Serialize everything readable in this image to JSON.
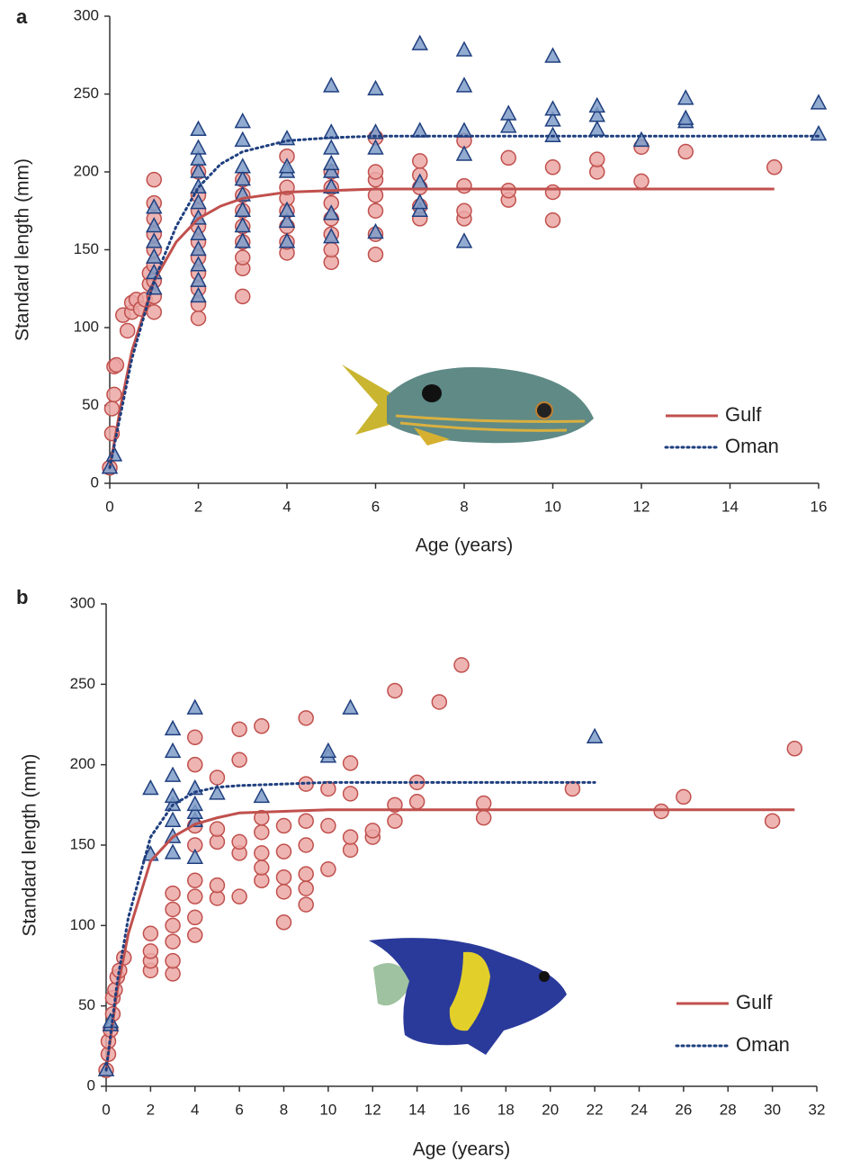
{
  "chart_data": [
    {
      "type": "scatter",
      "panel": "a",
      "xlabel": "Age (years)",
      "ylabel": "Standard length (mm)",
      "xlim": [
        0,
        16
      ],
      "ylim": [
        0,
        300
      ],
      "xticks": [
        0,
        2,
        4,
        6,
        8,
        10,
        12,
        14,
        16
      ],
      "yticks": [
        0,
        50,
        100,
        150,
        200,
        250,
        300
      ],
      "legend": "lower right",
      "series": [
        {
          "name": "Gulf",
          "color": "#c0504d",
          "fill": "#eba7a5",
          "marker": "circle",
          "dash": "solid",
          "x": [
            0,
            0.05,
            0.05,
            0.1,
            0.1,
            0.15,
            0.3,
            0.4,
            0.5,
            0.5,
            0.6,
            0.7,
            0.8,
            0.9,
            0.9,
            1,
            1,
            1,
            1,
            1,
            1,
            1,
            1,
            1,
            2,
            2,
            2,
            2,
            2,
            2,
            2,
            2,
            2,
            2,
            3,
            3,
            3,
            3,
            3,
            3,
            3,
            3,
            4,
            4,
            4,
            4,
            4,
            4,
            4,
            5,
            5,
            5,
            5,
            5,
            5,
            5,
            6,
            6,
            6,
            6,
            6,
            6,
            6,
            7,
            7,
            7,
            7,
            7,
            8,
            8,
            8,
            8,
            9,
            9,
            9,
            10,
            10,
            10,
            11,
            11,
            12,
            12,
            13,
            15
          ],
          "values": [
            10,
            32,
            48,
            57,
            75,
            76,
            108,
            98,
            110,
            116,
            118,
            112,
            118,
            128,
            135,
            110,
            120,
            130,
            140,
            150,
            160,
            170,
            180,
            195,
            106,
            115,
            125,
            135,
            145,
            155,
            165,
            175,
            185,
            200,
            120,
            138,
            145,
            155,
            165,
            175,
            185,
            195,
            148,
            155,
            165,
            175,
            183,
            190,
            210,
            142,
            150,
            160,
            170,
            180,
            190,
            200,
            147,
            160,
            175,
            185,
            195,
            200,
            222,
            170,
            178,
            190,
            198,
            207,
            170,
            175,
            191,
            220,
            182,
            188,
            209,
            169,
            187,
            203,
            200,
            208,
            194,
            216,
            213,
            203
          ],
          "curve_x": [
            0,
            0.25,
            0.5,
            1,
            1.5,
            2,
            2.5,
            3,
            4,
            5,
            6,
            8,
            10,
            12,
            15
          ],
          "curve_values": [
            10,
            50,
            85,
            130,
            155,
            170,
            178,
            183,
            187,
            188,
            189,
            189,
            189,
            189,
            189
          ]
        },
        {
          "name": "Oman",
          "color": "#1f3f7f",
          "fill": "#7f9cc8",
          "marker": "triangle",
          "dash": "dotted",
          "x": [
            0,
            0.1,
            1,
            1,
            1,
            1,
            1,
            1,
            2,
            2,
            2,
            2,
            2,
            2,
            2,
            2,
            2,
            2,
            2,
            2,
            3,
            3,
            3,
            3,
            3,
            3,
            3,
            3,
            4,
            4,
            4,
            4,
            4,
            4,
            5,
            5,
            5,
            5,
            5,
            5,
            5,
            5,
            6,
            6,
            6,
            6,
            7,
            7,
            7,
            7,
            7,
            8,
            8,
            8,
            8,
            8,
            9,
            9,
            10,
            10,
            10,
            10,
            11,
            11,
            11,
            12,
            13,
            13,
            13,
            16,
            16
          ],
          "values": [
            10,
            18,
            125,
            135,
            145,
            155,
            165,
            177,
            120,
            130,
            140,
            150,
            160,
            170,
            180,
            190,
            200,
            208,
            215,
            227,
            155,
            165,
            175,
            185,
            195,
            203,
            220,
            232,
            155,
            168,
            175,
            200,
            203,
            221,
            158,
            173,
            190,
            200,
            205,
            215,
            225,
            255,
            161,
            215,
            225,
            253,
            175,
            180,
            193,
            226,
            282,
            155,
            211,
            226,
            255,
            278,
            229,
            237,
            223,
            233,
            240,
            274,
            227,
            236,
            242,
            220,
            232,
            234,
            247,
            224,
            244
          ],
          "curve_x": [
            0,
            0.25,
            0.5,
            1,
            1.5,
            2,
            2.5,
            3,
            4,
            5,
            6,
            8,
            10,
            12,
            14,
            16
          ],
          "curve_values": [
            10,
            45,
            80,
            130,
            165,
            190,
            205,
            213,
            220,
            222,
            223,
            223,
            223,
            223,
            223,
            223
          ]
        }
      ]
    },
    {
      "type": "scatter",
      "panel": "b",
      "xlabel": "Age (years)",
      "ylabel": "Standard length (mm)",
      "xlim": [
        0,
        32
      ],
      "ylim": [
        0,
        300
      ],
      "xticks": [
        0,
        2,
        4,
        6,
        8,
        10,
        12,
        14,
        16,
        18,
        20,
        22,
        24,
        26,
        28,
        30,
        32
      ],
      "yticks": [
        0,
        50,
        100,
        150,
        200,
        250,
        300
      ],
      "legend": "lower right",
      "series": [
        {
          "name": "Gulf",
          "color": "#c0504d",
          "fill": "#eba7a5",
          "marker": "circle",
          "dash": "solid",
          "x": [
            0,
            0.1,
            0.1,
            0.2,
            0.3,
            0.3,
            0.4,
            0.5,
            0.6,
            0.8,
            2,
            2,
            2,
            2,
            3,
            3,
            3,
            3,
            3,
            3,
            4,
            4,
            4,
            4,
            4,
            4,
            4,
            4,
            5,
            5,
            5,
            5,
            5,
            6,
            6,
            6,
            6,
            6,
            7,
            7,
            7,
            7,
            7,
            7,
            8,
            8,
            8,
            8,
            8,
            9,
            9,
            9,
            9,
            9,
            9,
            9,
            10,
            10,
            10,
            11,
            11,
            11,
            11,
            12,
            12,
            13,
            13,
            13,
            14,
            14,
            15,
            16,
            17,
            17,
            21,
            25,
            26,
            30,
            31
          ],
          "values": [
            10,
            20,
            28,
            35,
            45,
            55,
            60,
            68,
            72,
            80,
            72,
            78,
            84,
            95,
            70,
            78,
            90,
            100,
            110,
            120,
            94,
            105,
            118,
            128,
            150,
            162,
            200,
            217,
            117,
            125,
            152,
            160,
            192,
            118,
            145,
            152,
            203,
            222,
            128,
            136,
            145,
            158,
            167,
            224,
            102,
            121,
            130,
            146,
            162,
            113,
            123,
            132,
            150,
            165,
            188,
            229,
            135,
            162,
            185,
            147,
            155,
            182,
            201,
            155,
            159,
            165,
            175,
            246,
            177,
            189,
            239,
            262,
            167,
            176,
            185,
            171,
            180,
            165,
            210
          ],
          "curve_x": [
            0,
            0.5,
            1,
            2,
            3,
            4,
            5,
            6,
            8,
            10,
            15,
            20,
            25,
            31
          ],
          "curve_values": [
            10,
            60,
            95,
            140,
            155,
            163,
            167,
            170,
            171,
            172,
            172,
            172,
            172,
            172
          ]
        },
        {
          "name": "Oman",
          "color": "#1f3f7f",
          "fill": "#7f9cc8",
          "marker": "triangle",
          "dash": "dotted",
          "x": [
            0,
            0.2,
            0.2,
            2,
            2,
            3,
            3,
            3,
            3,
            3,
            3,
            3,
            3,
            4,
            4,
            4,
            4,
            4,
            4,
            5,
            7,
            10,
            10,
            11,
            22
          ],
          "values": [
            10,
            38,
            40,
            144,
            185,
            145,
            155,
            165,
            175,
            180,
            193,
            208,
            222,
            142,
            165,
            170,
            175,
            185,
            235,
            182,
            180,
            205,
            208,
            235,
            217
          ],
          "curve_x": [
            0,
            0.5,
            1,
            2,
            3,
            4,
            5,
            6,
            8,
            10,
            15,
            22
          ],
          "curve_values": [
            10,
            65,
            105,
            155,
            175,
            183,
            186,
            187,
            188,
            189,
            189,
            189
          ]
        }
      ]
    }
  ]
}
